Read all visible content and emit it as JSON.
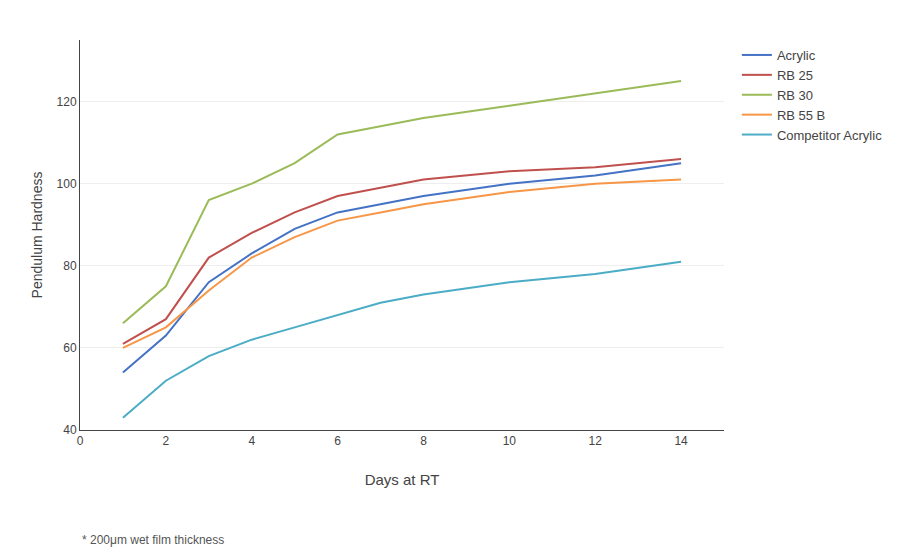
{
  "chart_data": {
    "type": "line",
    "xlabel": "Days at RT",
    "ylabel": "Pendulum Hardness",
    "x": [
      1,
      2,
      3,
      4,
      5,
      6,
      7,
      8,
      10,
      12,
      14
    ],
    "series": [
      {
        "name": "Acrylic",
        "color": "#4472C4",
        "values": [
          54,
          63,
          76,
          83,
          89,
          93,
          95,
          97,
          100,
          102,
          105
        ]
      },
      {
        "name": "RB 25",
        "color": "#C0504D",
        "values": [
          61,
          67,
          82,
          88,
          93,
          97,
          99,
          101,
          103,
          104,
          106
        ]
      },
      {
        "name": "RB 30",
        "color": "#9BBB59",
        "values": [
          66,
          75,
          96,
          100,
          105,
          112,
          114,
          116,
          119,
          122,
          125
        ]
      },
      {
        "name": "RB 55 B",
        "color": "#F79646",
        "values": [
          60,
          65,
          74,
          82,
          87,
          91,
          93,
          95,
          98,
          100,
          101
        ]
      },
      {
        "name": "Competitor Acrylic",
        "color": "#4BACC6",
        "values": [
          43,
          52,
          58,
          62,
          65,
          68,
          71,
          73,
          76,
          78,
          81
        ]
      }
    ],
    "xlim": [
      0,
      15
    ],
    "ylim": [
      40,
      135
    ],
    "xticks": [
      0,
      2,
      4,
      6,
      8,
      10,
      12,
      14
    ],
    "yticks": [
      40,
      60,
      80,
      100,
      120
    ],
    "grid": true,
    "legend": "right",
    "annotations": [
      "* 200μm wet film thickness"
    ]
  }
}
